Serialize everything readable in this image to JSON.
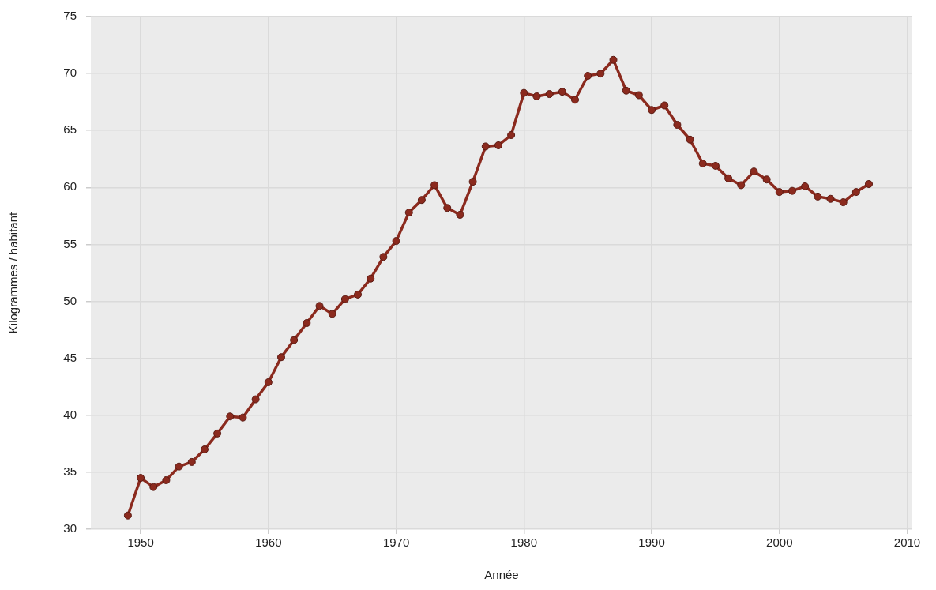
{
  "chart_data": {
    "type": "line",
    "xlabel": "Année",
    "ylabel": "Kilogrammes / habitant",
    "x": [
      1949,
      1950,
      1951,
      1952,
      1953,
      1954,
      1955,
      1956,
      1957,
      1958,
      1959,
      1960,
      1961,
      1962,
      1963,
      1964,
      1965,
      1966,
      1967,
      1968,
      1969,
      1970,
      1971,
      1972,
      1973,
      1974,
      1975,
      1976,
      1977,
      1978,
      1979,
      1980,
      1981,
      1982,
      1983,
      1984,
      1985,
      1986,
      1987,
      1988,
      1989,
      1990,
      1991,
      1992,
      1993,
      1994,
      1995,
      1996,
      1997,
      1998,
      1999,
      2000,
      2001,
      2002,
      2003,
      2004,
      2005,
      2006,
      2007
    ],
    "series": [
      {
        "color": "#8b2a1e",
        "values": [
          31.2,
          34.5,
          33.7,
          34.3,
          35.5,
          35.9,
          37.0,
          38.4,
          39.9,
          39.8,
          41.4,
          42.9,
          45.1,
          46.6,
          48.1,
          49.6,
          48.9,
          50.2,
          50.6,
          52.0,
          53.9,
          55.3,
          57.8,
          58.9,
          60.2,
          58.2,
          57.6,
          60.5,
          63.6,
          63.7,
          64.6,
          68.3,
          68.0,
          68.2,
          68.4,
          67.7,
          69.8,
          70.0,
          71.2,
          68.5,
          68.1,
          66.8,
          67.2,
          65.5,
          64.2,
          62.1,
          61.9,
          60.8,
          60.2,
          61.4,
          60.7,
          59.6,
          59.7,
          60.1,
          59.2,
          59.0,
          58.7,
          59.6,
          60.3
        ]
      }
    ],
    "xlim": [
      1946.1,
      2010.4
    ],
    "xticks": [
      1950,
      1960,
      1970,
      1980,
      1990,
      2000,
      2010
    ],
    "ylim": [
      30,
      75
    ],
    "yticks": [
      30,
      35,
      40,
      45,
      50,
      55,
      60,
      65,
      70,
      75
    ],
    "grid": true,
    "legend": false,
    "marker": "circle",
    "line_style": "solid"
  }
}
